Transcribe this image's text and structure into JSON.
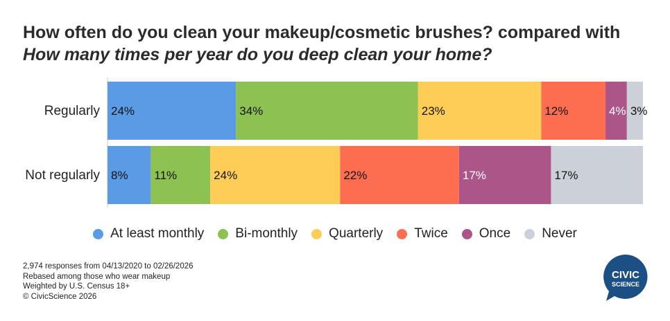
{
  "title": {
    "question1": "How often do you clean your makeup/cosmetic brushes?",
    "connector": "compared with",
    "question2": "How many times per year do you deep clean your home?"
  },
  "chart_data": {
    "type": "bar",
    "orientation": "horizontal",
    "stacked": true,
    "percent_total": true,
    "categories": [
      "Regularly",
      "Not regularly"
    ],
    "series": [
      {
        "name": "At least monthly",
        "color": "#5b9be6",
        "values": [
          24,
          8
        ],
        "labels": [
          "24%",
          "8%"
        ],
        "label_color": "#111111"
      },
      {
        "name": "Bi-monthly",
        "color": "#8dc152",
        "values": [
          34,
          11
        ],
        "labels": [
          "34%",
          "11%"
        ],
        "label_color": "#111111"
      },
      {
        "name": "Quarterly",
        "color": "#fecd55",
        "values": [
          23,
          24
        ],
        "labels": [
          "23%",
          "24%"
        ],
        "label_color": "#111111"
      },
      {
        "name": "Twice",
        "color": "#fd6e51",
        "values": [
          12,
          22
        ],
        "labels": [
          "12%",
          "22%"
        ],
        "label_color": "#111111"
      },
      {
        "name": "Once",
        "color": "#ac5589",
        "values": [
          4,
          17
        ],
        "labels": [
          "4%",
          "17%"
        ],
        "label_color": "#ffffff"
      },
      {
        "name": "Never",
        "color": "#ccd0d9",
        "values": [
          3,
          17
        ],
        "labels": [
          "3%",
          "17%"
        ],
        "label_color": "#111111"
      }
    ],
    "legend_position": "bottom",
    "grid": false
  },
  "notes": [
    "2,974 responses from 04/13/2020 to 02/26/2026",
    "Rebased among those who wear makeup",
    "Weighted by U.S. Census 18+",
    "© CivicScience 2026"
  ],
  "logo": {
    "line1": "CIVIC",
    "line2": "SCIENCE",
    "color": "#1c4f83"
  }
}
